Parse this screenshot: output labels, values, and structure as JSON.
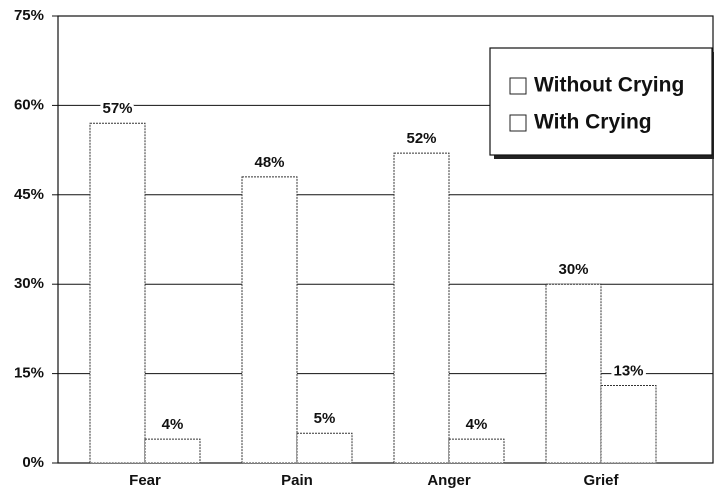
{
  "chart_data": {
    "type": "bar",
    "categories": [
      "Fear",
      "Pain",
      "Anger",
      "Grief"
    ],
    "series": [
      {
        "name": "Without Crying",
        "color": "#ffffff",
        "values": [
          57,
          48,
          52,
          30
        ],
        "value_labels": [
          "57%",
          "48%",
          "52%",
          "30%"
        ]
      },
      {
        "name": "With Crying",
        "color": "#ffffff",
        "values": [
          4,
          5,
          4,
          13
        ],
        "value_labels": [
          "4%",
          "5%",
          "4%",
          "13%"
        ]
      }
    ],
    "ylim": [
      0,
      75
    ],
    "yticks": [
      {
        "value": 0,
        "label": "0%"
      },
      {
        "value": 15,
        "label": "15%"
      },
      {
        "value": 30,
        "label": "30%"
      },
      {
        "value": 45,
        "label": "45%"
      },
      {
        "value": 60,
        "label": "60%"
      },
      {
        "value": 75,
        "label": "75%"
      }
    ],
    "grid": true,
    "legend": "upper right"
  }
}
